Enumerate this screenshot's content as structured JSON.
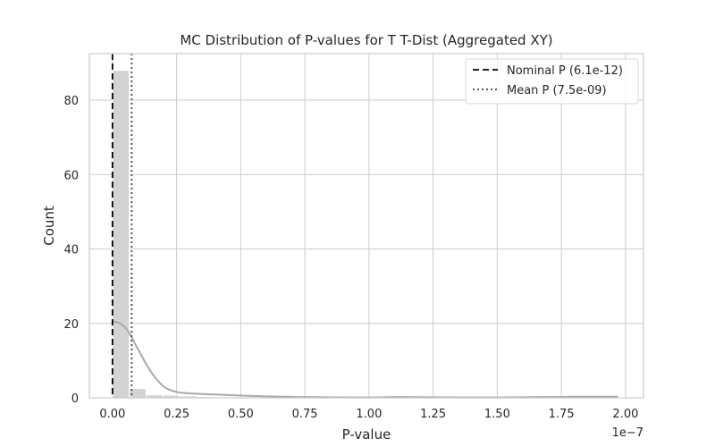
{
  "chart_data": {
    "type": "bar",
    "title": "MC Distribution of P-values for T T-Dist (Aggregated XY)",
    "xlabel": "P-value",
    "ylabel": "Count",
    "x_offset_label": "1e−7",
    "x_scale": 1e-07,
    "xlim": [
      -0.09,
      2.07
    ],
    "ylim": [
      0,
      92.5
    ],
    "xticks": [
      0.0,
      0.25,
      0.5,
      0.75,
      1.0,
      1.25,
      1.5,
      1.75,
      2.0
    ],
    "xtick_labels": [
      "0.00",
      "0.25",
      "0.50",
      "0.75",
      "1.00",
      "1.25",
      "1.50",
      "1.75",
      "2.00"
    ],
    "yticks": [
      0,
      20,
      40,
      60,
      80
    ],
    "ytick_labels": [
      "0",
      "20",
      "40",
      "60",
      "80"
    ],
    "grid": true,
    "bin_width": 0.0656,
    "bins": [
      {
        "x": 0.0,
        "count": 88
      },
      {
        "x": 0.0656,
        "count": 2.5
      },
      {
        "x": 0.1312,
        "count": 0.8
      },
      {
        "x": 0.1968,
        "count": 0.7
      },
      {
        "x": 0.2624,
        "count": 0.5
      },
      {
        "x": 0.328,
        "count": 0.3
      },
      {
        "x": 0.3936,
        "count": 0.2
      },
      {
        "x": 0.4592,
        "count": 0.2
      },
      {
        "x": 0.5248,
        "count": 0.1
      },
      {
        "x": 0.5904,
        "count": 0.1
      },
      {
        "x": 1.0496,
        "count": 0.4
      },
      {
        "x": 1.1152,
        "count": 0.3
      },
      {
        "x": 1.706,
        "count": 0.4
      },
      {
        "x": 1.8372,
        "count": 0.3
      },
      {
        "x": 1.9028,
        "count": 0.4
      }
    ],
    "kde": {
      "x": [
        0.0,
        0.03,
        0.06,
        0.1,
        0.15,
        0.2,
        0.25,
        0.3,
        0.4,
        0.5,
        0.6,
        0.75,
        1.0,
        1.1,
        1.25,
        1.5,
        1.75,
        1.85,
        1.97
      ],
      "y": [
        20.5,
        20.0,
        18.0,
        13.0,
        7.0,
        3.0,
        1.6,
        1.2,
        0.9,
        0.6,
        0.4,
        0.2,
        0.1,
        0.2,
        0.15,
        0.1,
        0.25,
        0.3,
        0.3
      ]
    },
    "vlines": [
      {
        "name": "Nominal P (6.1e-12)",
        "x": 0.0,
        "style": "dashed",
        "color": "#000000"
      },
      {
        "name": "Mean P (7.5e-09)",
        "x": 0.075,
        "style": "dotted",
        "color": "#444444"
      }
    ],
    "legend": "top-right",
    "bar_color": "#d3d3d3",
    "kde_color": "#a9a9a9",
    "grid_color": "#cccccc"
  }
}
